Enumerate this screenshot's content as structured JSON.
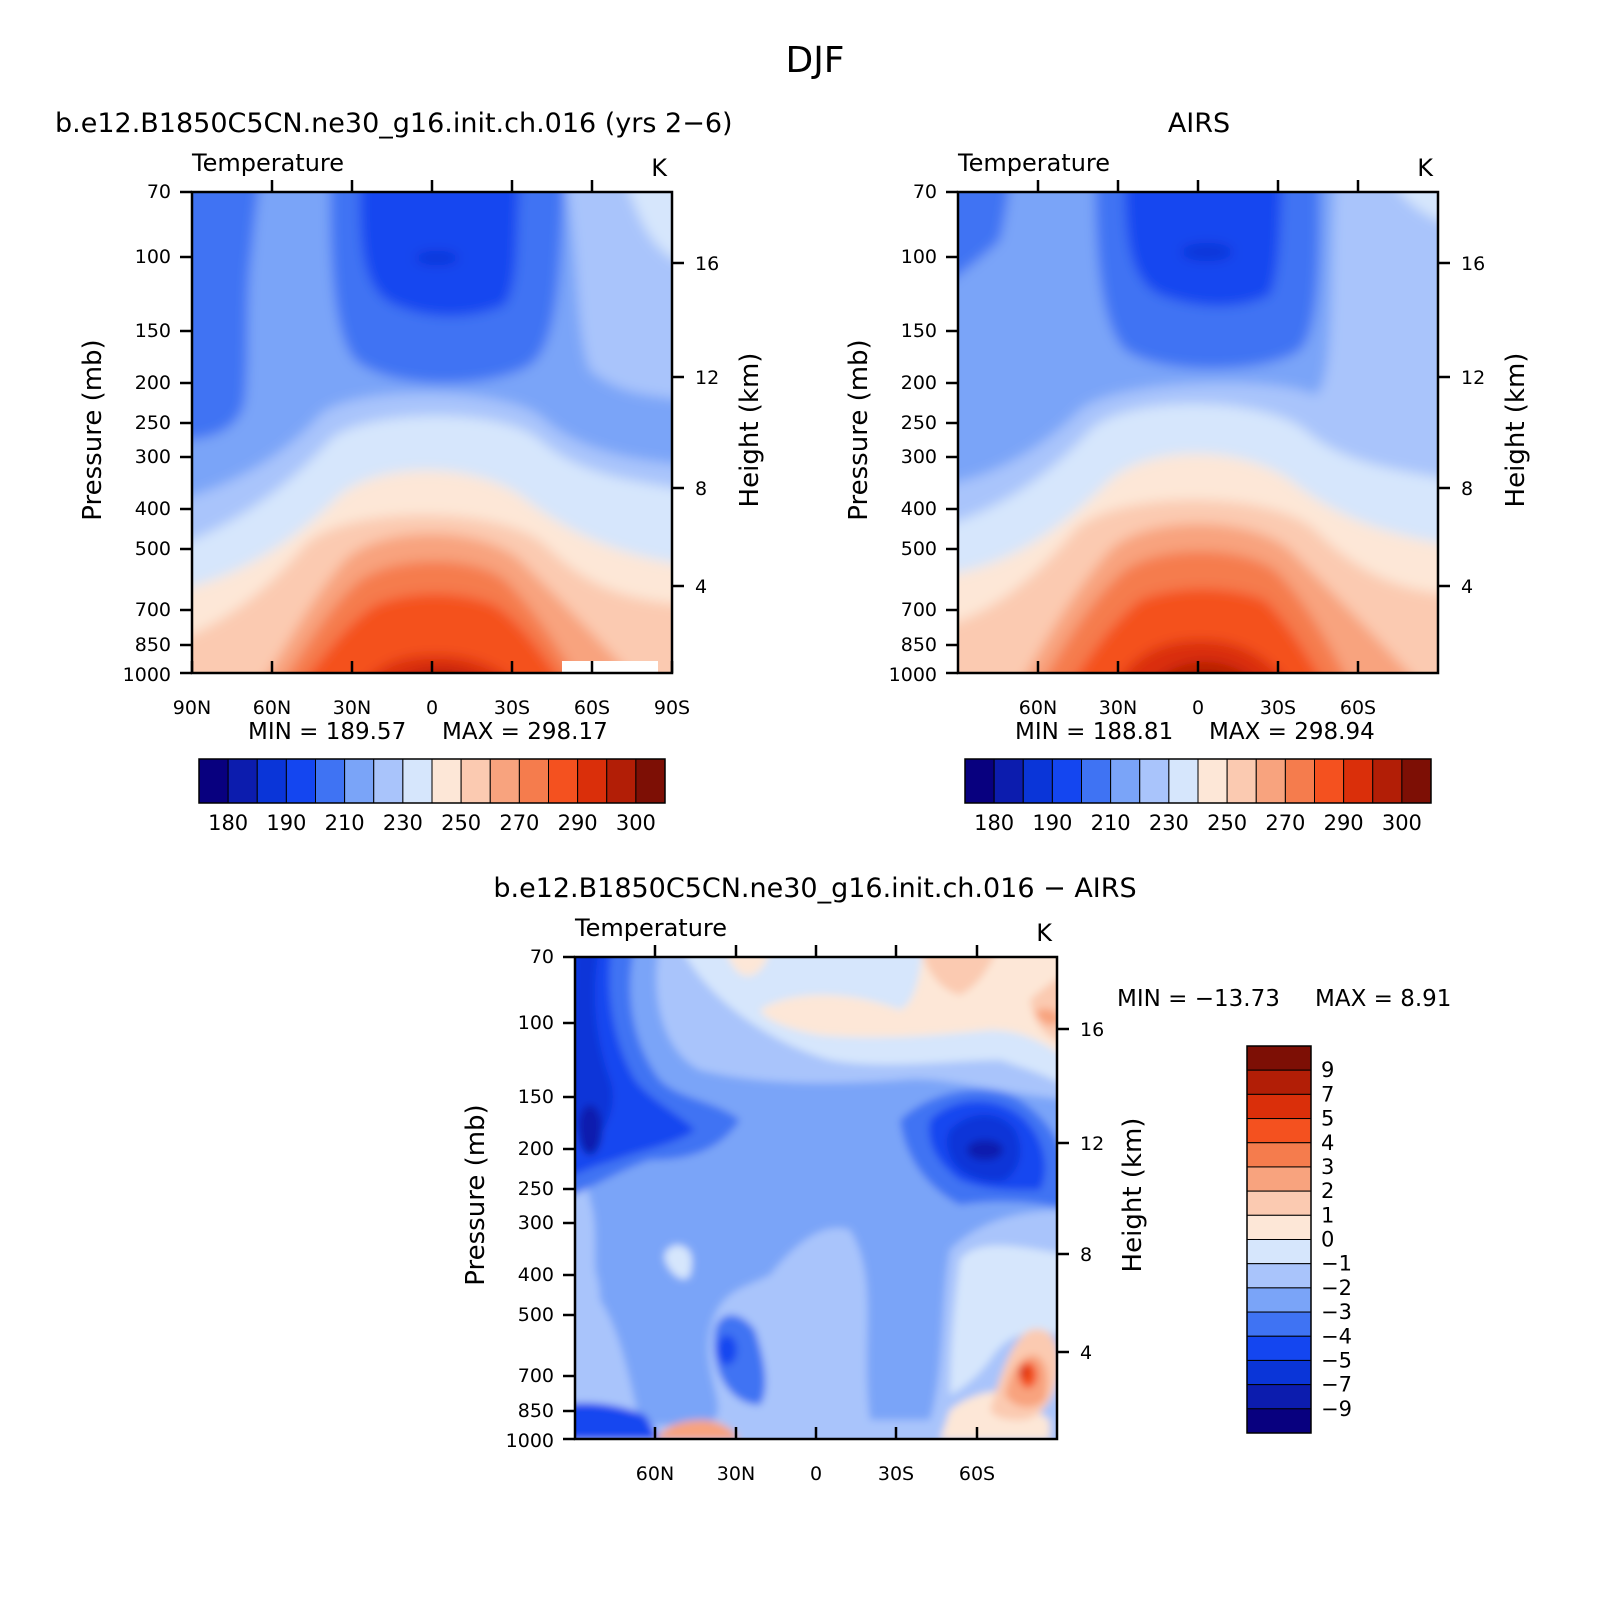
{
  "page_title": "DJF",
  "chart_data": [
    {
      "id": "model",
      "type": "heatmap",
      "title": "b.e12.B1850C5CN.ne30_g16.init.ch.016 (yrs 2−6)",
      "variable_label": "Temperature",
      "units": "K",
      "ylabel": "Pressure (mb)",
      "y2label": "Height (km)",
      "x_tick_labels": [
        "90N",
        "60N",
        "30N",
        "0",
        "30S",
        "60S",
        "90S"
      ],
      "x_tick_values": [
        90,
        60,
        30,
        0,
        -30,
        -60,
        -90
      ],
      "xlim": [
        90,
        -90
      ],
      "y_tick_labels": [
        "70",
        "100",
        "150",
        "200",
        "250",
        "300",
        "400",
        "500",
        "700",
        "850",
        "1000"
      ],
      "y_tick_values": [
        70,
        100,
        150,
        200,
        250,
        300,
        400,
        500,
        700,
        850,
        1000
      ],
      "ylim": [
        1000,
        70
      ],
      "y_scale": "log",
      "y2_tick_labels": [
        "4",
        "8",
        "12",
        "16"
      ],
      "y2_tick_values": [
        4,
        8,
        12,
        16
      ],
      "min_label": "MIN = 189.57",
      "max_label": "MAX = 298.17",
      "min": 189.57,
      "max": 298.17,
      "colorbar_labels": [
        "180",
        "190",
        "210",
        "230",
        "250",
        "270",
        "290",
        "300"
      ],
      "contour_levels": [
        175,
        180,
        185,
        190,
        200,
        210,
        220,
        230,
        240,
        250,
        260,
        270,
        280,
        290,
        295,
        300
      ],
      "colors": [
        "#08007f",
        "#0c1cae",
        "#0a35d8",
        "#1446f0",
        "#3f73f3",
        "#7aa4f8",
        "#a9c4fb",
        "#d6e6fc",
        "#fde7d7",
        "#fbcab1",
        "#f8a37e",
        "#f57c4d",
        "#f4511f",
        "#da2f0a",
        "#b21e06",
        "#7d0f05"
      ]
    },
    {
      "id": "obs",
      "type": "heatmap",
      "title": "AIRS",
      "variable_label": "Temperature",
      "units": "K",
      "ylabel": "Pressure (mb)",
      "y2label": "Height (km)",
      "x_tick_labels": [
        "60N",
        "30N",
        "0",
        "30S",
        "60S"
      ],
      "x_tick_values": [
        60,
        30,
        0,
        -30,
        -60
      ],
      "xlim": [
        90,
        -90
      ],
      "y_tick_labels": [
        "70",
        "100",
        "150",
        "200",
        "250",
        "300",
        "400",
        "500",
        "700",
        "850",
        "1000"
      ],
      "y_tick_values": [
        70,
        100,
        150,
        200,
        250,
        300,
        400,
        500,
        700,
        850,
        1000
      ],
      "ylim": [
        1000,
        70
      ],
      "y_scale": "log",
      "y2_tick_labels": [
        "4",
        "8",
        "12",
        "16"
      ],
      "y2_tick_values": [
        4,
        8,
        12,
        16
      ],
      "min_label": "MIN = 188.81",
      "max_label": "MAX = 298.94",
      "min": 188.81,
      "max": 298.94,
      "colorbar_labels": [
        "180",
        "190",
        "210",
        "230",
        "250",
        "270",
        "290",
        "300"
      ],
      "contour_levels": [
        175,
        180,
        185,
        190,
        200,
        210,
        220,
        230,
        240,
        250,
        260,
        270,
        280,
        290,
        295,
        300
      ],
      "colors": [
        "#08007f",
        "#0c1cae",
        "#0a35d8",
        "#1446f0",
        "#3f73f3",
        "#7aa4f8",
        "#a9c4fb",
        "#d6e6fc",
        "#fde7d7",
        "#fbcab1",
        "#f8a37e",
        "#f57c4d",
        "#f4511f",
        "#da2f0a",
        "#b21e06",
        "#7d0f05"
      ]
    },
    {
      "id": "diff",
      "type": "heatmap",
      "title": "b.e12.B1850C5CN.ne30_g16.init.ch.016 − AIRS",
      "variable_label": "Temperature",
      "units": "K",
      "ylabel": "Pressure (mb)",
      "y2label": "Height (km)",
      "x_tick_labels": [
        "60N",
        "30N",
        "0",
        "30S",
        "60S"
      ],
      "x_tick_values": [
        60,
        30,
        0,
        -30,
        -60
      ],
      "xlim": [
        90,
        -90
      ],
      "y_tick_labels": [
        "70",
        "100",
        "150",
        "200",
        "250",
        "300",
        "400",
        "500",
        "700",
        "850",
        "1000"
      ],
      "y_tick_values": [
        70,
        100,
        150,
        200,
        250,
        300,
        400,
        500,
        700,
        850,
        1000
      ],
      "ylim": [
        1000,
        70
      ],
      "y_scale": "log",
      "y2_tick_labels": [
        "4",
        "8",
        "12",
        "16"
      ],
      "y2_tick_values": [
        4,
        8,
        12,
        16
      ],
      "min_label": "MIN = −13.73",
      "max_label": "MAX = 8.91",
      "min": -13.73,
      "max": 8.91,
      "colorbar_labels": [
        "9",
        "7",
        "5",
        "4",
        "3",
        "2",
        "1",
        "0",
        "−1",
        "−2",
        "−3",
        "−4",
        "−5",
        "−7",
        "−9"
      ],
      "contour_levels": [
        9,
        7,
        5,
        4,
        3,
        2,
        1,
        0,
        -1,
        -2,
        -3,
        -4,
        -5,
        -7,
        -9
      ],
      "colors": [
        "#7d0f05",
        "#b21e06",
        "#da2f0a",
        "#f4511f",
        "#f57c4d",
        "#f8a37e",
        "#fbcab1",
        "#fde7d7",
        "#d6e6fc",
        "#a9c4fb",
        "#7aa4f8",
        "#3f73f3",
        "#1446f0",
        "#0a35d8",
        "#0c1cae",
        "#08007f"
      ]
    }
  ]
}
